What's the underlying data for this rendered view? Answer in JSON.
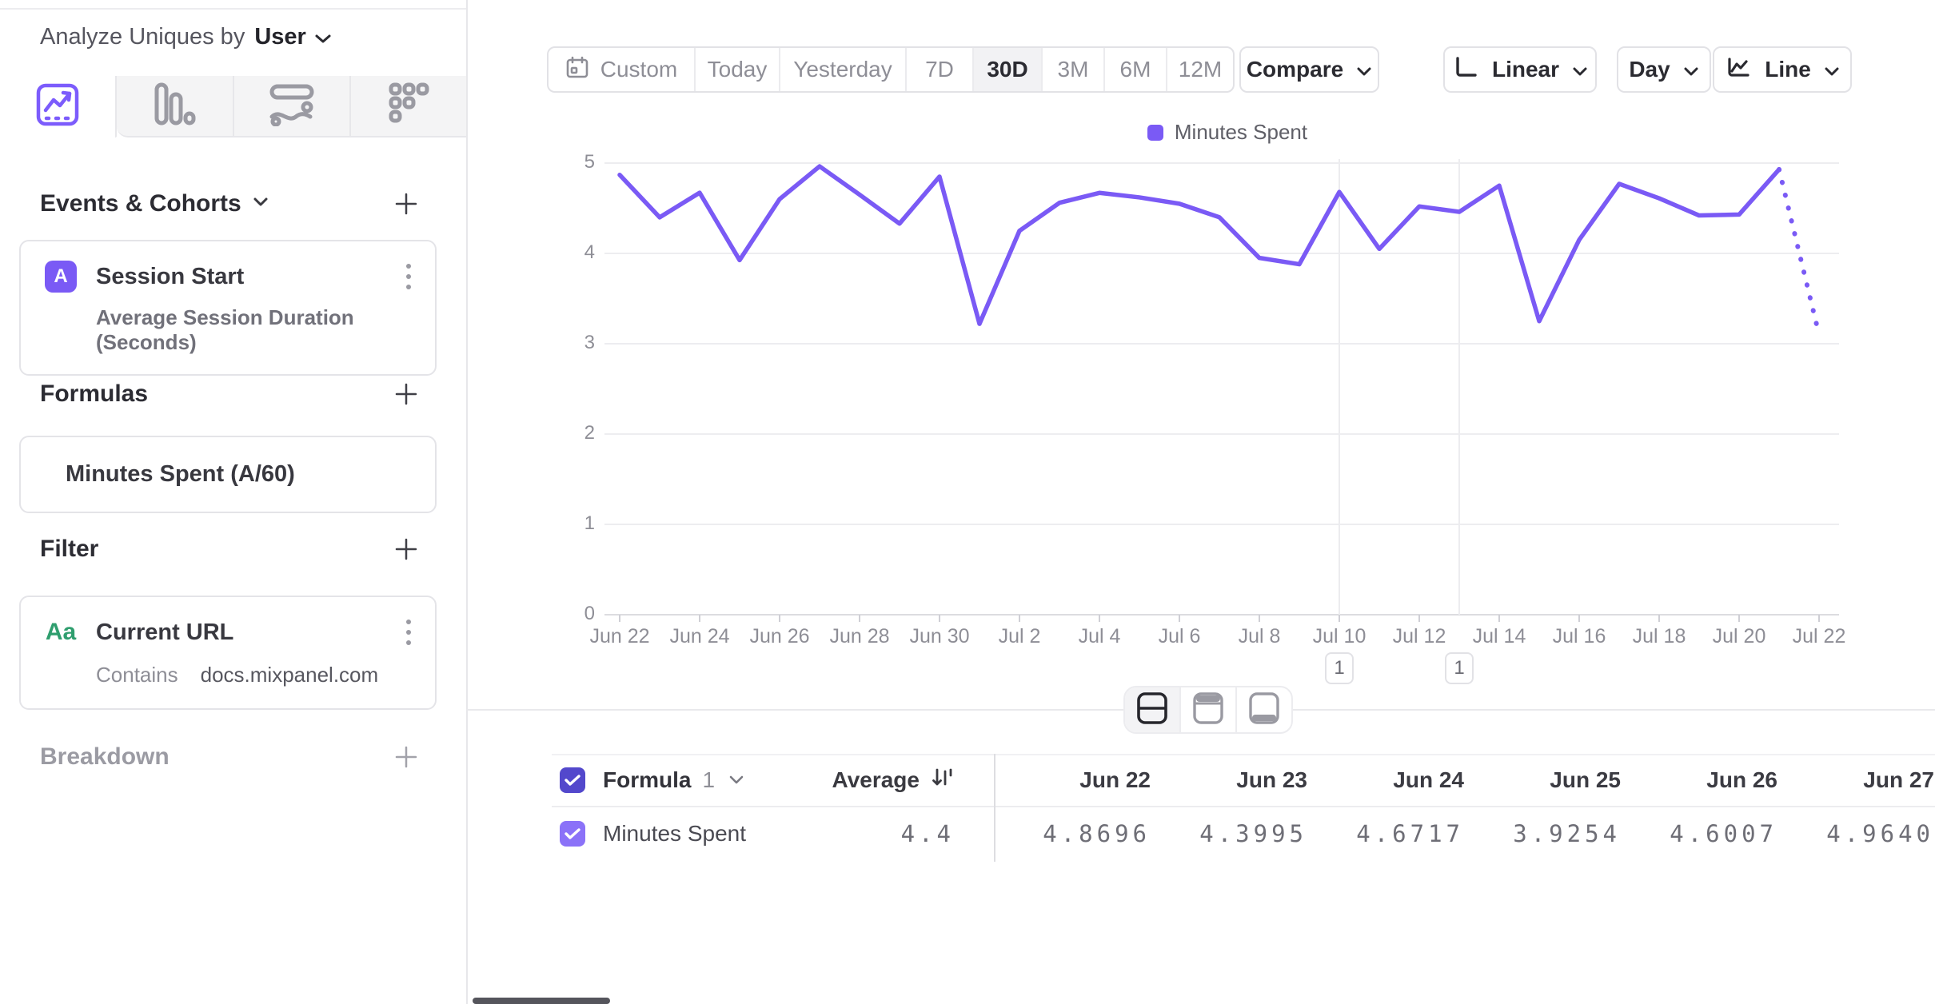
{
  "sidebar": {
    "analyze_label": "Analyze Uniques by",
    "analyze_value": "User",
    "tabs": [
      {
        "icon": "insights-line-chart-icon",
        "selected": true
      },
      {
        "icon": "bar-chart-icon",
        "selected": false
      },
      {
        "icon": "flow-icon",
        "selected": false
      },
      {
        "icon": "retention-dots-icon",
        "selected": false
      }
    ],
    "events_section": {
      "title": "Events & Cohorts",
      "card": {
        "badge": "A",
        "title": "Session Start",
        "subtitle": "Average Session Duration (Seconds)"
      }
    },
    "formulas_section": {
      "title": "Formulas",
      "card_text": "Minutes Spent (A/60)"
    },
    "filter_section": {
      "title": "Filter",
      "card": {
        "badge": "Aa",
        "title": "Current URL",
        "operator": "Contains",
        "value": "docs.mixpanel.com"
      }
    },
    "breakdown_section": {
      "title": "Breakdown"
    }
  },
  "toolbar": {
    "ranges": [
      "Custom",
      "Today",
      "Yesterday",
      "7D",
      "30D",
      "3M",
      "6M",
      "12M"
    ],
    "selected_range": "30D",
    "compare_label": "Compare",
    "scale_label": "Linear",
    "granularity_label": "Day",
    "chart_type_label": "Line"
  },
  "legend": {
    "label": "Minutes Spent",
    "color": "#7a5af5"
  },
  "chart_data": {
    "type": "line",
    "x": [
      "Jun 22",
      "Jun 23",
      "Jun 24",
      "Jun 25",
      "Jun 26",
      "Jun 27",
      "Jun 28",
      "Jun 29",
      "Jun 30",
      "Jul 1",
      "Jul 2",
      "Jul 3",
      "Jul 4",
      "Jul 5",
      "Jul 6",
      "Jul 7",
      "Jul 8",
      "Jul 9",
      "Jul 10",
      "Jul 11",
      "Jul 12",
      "Jul 13",
      "Jul 14",
      "Jul 15",
      "Jul 16",
      "Jul 17",
      "Jul 18",
      "Jul 19",
      "Jul 20",
      "Jul 21",
      "Jul 22"
    ],
    "series": [
      {
        "name": "Minutes Spent",
        "color": "#7a5af5",
        "values": [
          4.8696,
          4.3995,
          4.6717,
          3.9254,
          4.6007,
          4.964,
          4.65,
          4.33,
          4.85,
          3.22,
          4.25,
          4.56,
          4.67,
          4.62,
          4.55,
          4.4,
          3.95,
          3.88,
          4.68,
          4.05,
          4.52,
          4.46,
          4.75,
          3.25,
          4.15,
          4.77,
          4.61,
          4.42,
          4.43,
          4.93,
          3.1
        ]
      }
    ],
    "ylim": [
      0,
      5
    ],
    "yticks": [
      0,
      1,
      2,
      3,
      4,
      5
    ],
    "xtick_every": 2,
    "grid": true,
    "dotted_last_segment": true,
    "legend_position": "top-center",
    "annotations": [
      {
        "label": "1",
        "x": "Jul 10"
      },
      {
        "label": "1",
        "x": "Jul 13"
      }
    ]
  },
  "table": {
    "group_label": "Formula",
    "group_number": "1",
    "avg_header": "Average",
    "columns": [
      "Jun 22",
      "Jun 23",
      "Jun 24",
      "Jun 25",
      "Jun 26",
      "Jun 27"
    ],
    "rows": [
      {
        "name": "Minutes Spent",
        "average": "4.4",
        "values": [
          "4.8696",
          "4.3995",
          "4.6717",
          "3.9254",
          "4.6007",
          "4.9640"
        ]
      }
    ]
  },
  "colors": {
    "accent_purple": "#7a5af5",
    "checkbox_header": "#5348cc",
    "checkbox_row": "#8b72f8",
    "filter_green": "#2f9e6e",
    "grid_line": "#ededf0",
    "axis_line": "#dcdce0"
  }
}
